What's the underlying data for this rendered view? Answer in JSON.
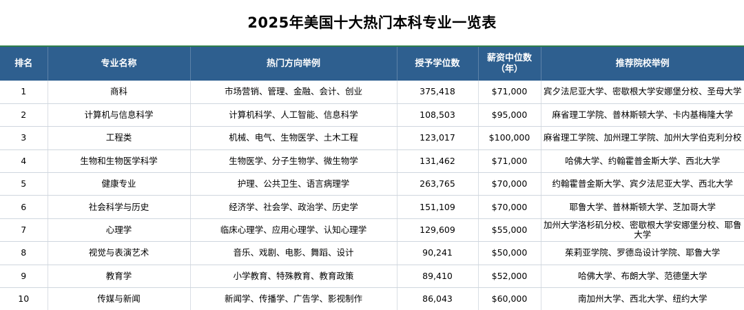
{
  "title": "2025年美国十大热门本科专业一览表",
  "headers": {
    "rank": "排名",
    "major": "专业名称",
    "directions": "热门方向举例",
    "degrees": "授予学位数",
    "salary_line1": "薪资中位数",
    "salary_line2": "（年）",
    "schools": "推荐院校举例"
  },
  "rows": [
    {
      "rank": "1",
      "major": "商科",
      "directions": "市场营销、管理、金融、会计、创业",
      "degrees": "375,418",
      "salary": "$71,000",
      "schools": "宾夕法尼亚大学、密歇根大学安娜堡分校、圣母大学"
    },
    {
      "rank": "2",
      "major": "计算机与信息科学",
      "directions": "计算机科学、人工智能、信息科学",
      "degrees": "108,503",
      "salary": "$95,000",
      "schools": "麻省理工学院、普林斯顿大学、卡内基梅隆大学"
    },
    {
      "rank": "3",
      "major": "工程类",
      "directions": "机械、电气、生物医学、土木工程",
      "degrees": "123,017",
      "salary": "$100,000",
      "schools": "麻省理工学院、加州理工学院、加州大学伯克利分校"
    },
    {
      "rank": "4",
      "major": "生物和生物医学科学",
      "directions": "生物医学、分子生物学、微生物学",
      "degrees": "131,462",
      "salary": "$71,000",
      "schools": "哈佛大学、约翰霍普金斯大学、西北大学"
    },
    {
      "rank": "5",
      "major": "健康专业",
      "directions": "护理、公共卫生、语言病理学",
      "degrees": "263,765",
      "salary": "$70,000",
      "schools": "约翰霍普金斯大学、宾夕法尼亚大学、西北大学"
    },
    {
      "rank": "6",
      "major": "社会科学与历史",
      "directions": "经济学、社会学、政治学、历史学",
      "degrees": "151,109",
      "salary": "$70,000",
      "schools": "耶鲁大学、普林斯顿大学、芝加哥大学"
    },
    {
      "rank": "7",
      "major": "心理学",
      "directions": "临床心理学、应用心理学、认知心理学",
      "degrees": "129,609",
      "salary": "$55,000",
      "schools": "加州大学洛杉矶分校、密歇根大学安娜堡分校、耶鲁大学"
    },
    {
      "rank": "8",
      "major": "视觉与表演艺术",
      "directions": "音乐、戏剧、电影、舞蹈、设计",
      "degrees": "90,241",
      "salary": "$50,000",
      "schools": "茱莉亚学院、罗德岛设计学院、耶鲁大学"
    },
    {
      "rank": "9",
      "major": "教育学",
      "directions": "小学教育、特殊教育、教育政策",
      "degrees": "89,410",
      "salary": "$52,000",
      "schools": "哈佛大学、布朗大学、范德堡大学"
    },
    {
      "rank": "10",
      "major": "传媒与新闻",
      "directions": "新闻学、传播学、广告学、影视制作",
      "degrees": "86,043",
      "salary": "$60,000",
      "schools": "南加州大学、西北大学、纽约大学"
    }
  ]
}
